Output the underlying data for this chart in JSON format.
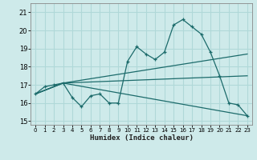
{
  "xlabel": "Humidex (Indice chaleur)",
  "xlim": [
    -0.5,
    23.5
  ],
  "ylim": [
    14.8,
    21.5
  ],
  "yticks": [
    15,
    16,
    17,
    18,
    19,
    20,
    21
  ],
  "xticks": [
    0,
    1,
    2,
    3,
    4,
    5,
    6,
    7,
    8,
    9,
    10,
    11,
    12,
    13,
    14,
    15,
    16,
    17,
    18,
    19,
    20,
    21,
    22,
    23
  ],
  "bg_color": "#ceeaea",
  "line_color": "#1c6b6b",
  "grid_color": "#b0d8d8",
  "line1_x": [
    0,
    1,
    2,
    3,
    4,
    5,
    6,
    7,
    8,
    9,
    10,
    11,
    12,
    13,
    14,
    15,
    16,
    17,
    18,
    19,
    20,
    21,
    22,
    23
  ],
  "line1_y": [
    16.5,
    16.9,
    17.0,
    17.1,
    16.3,
    15.8,
    16.4,
    16.5,
    16.0,
    16.0,
    18.3,
    19.1,
    18.7,
    18.4,
    18.8,
    20.3,
    20.6,
    20.2,
    19.8,
    18.8,
    17.5,
    16.0,
    15.9,
    15.3
  ],
  "line2_x": [
    0,
    3,
    23
  ],
  "line2_y": [
    16.5,
    17.1,
    18.7
  ],
  "line3_x": [
    0,
    3,
    23
  ],
  "line3_y": [
    16.5,
    17.1,
    15.3
  ],
  "line4_x": [
    0,
    3,
    23
  ],
  "line4_y": [
    16.5,
    17.1,
    17.5
  ]
}
